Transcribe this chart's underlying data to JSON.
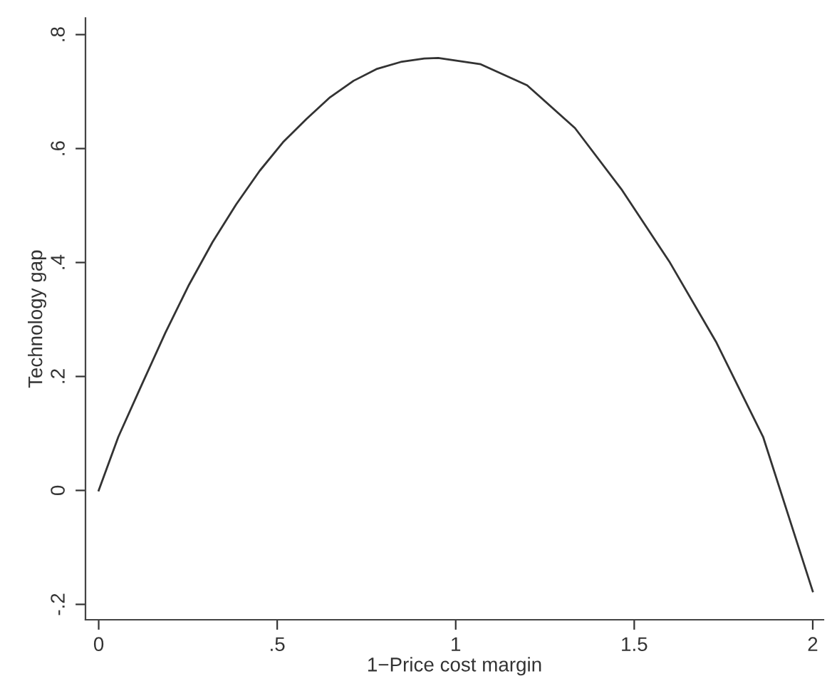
{
  "chart_data": {
    "type": "line",
    "xlabel": "1−Price cost margin",
    "ylabel": "Technology gap",
    "x": [
      0,
      0.055,
      0.121,
      0.187,
      0.253,
      0.319,
      0.385,
      0.451,
      0.516,
      0.582,
      0.648,
      0.714,
      0.78,
      0.846,
      0.912,
      0.951,
      1.07,
      1.2,
      1.334,
      1.466,
      1.598,
      1.729,
      1.861,
      2.0
    ],
    "series": [
      {
        "color": "#333333",
        "values": [
          0,
          0.094,
          0.186,
          0.277,
          0.361,
          0.436,
          0.502,
          0.561,
          0.611,
          0.652,
          0.69,
          0.719,
          0.74,
          0.752,
          0.758,
          0.759,
          0.748,
          0.711,
          0.636,
          0.527,
          0.402,
          0.261,
          0.094,
          -0.177
        ]
      }
    ],
    "xlim": [
      -0.037,
      2.03
    ],
    "ylim": [
      -0.227,
      0.829
    ],
    "xticks": [
      {
        "value": 0,
        "label": "0"
      },
      {
        "value": 0.5,
        "label": ".5"
      },
      {
        "value": 1,
        "label": "1"
      },
      {
        "value": 1.5,
        "label": "1.5"
      },
      {
        "value": 2,
        "label": "2"
      }
    ],
    "yticks": [
      {
        "value": -0.2,
        "label": "-.2"
      },
      {
        "value": 0,
        "label": "0"
      },
      {
        "value": 0.2,
        "label": ".2"
      },
      {
        "value": 0.4,
        "label": ".4"
      },
      {
        "value": 0.6,
        "label": ".6"
      },
      {
        "value": 0.8,
        "label": ".8"
      }
    ],
    "grid": false,
    "marker": "none",
    "line_style": "solid"
  }
}
